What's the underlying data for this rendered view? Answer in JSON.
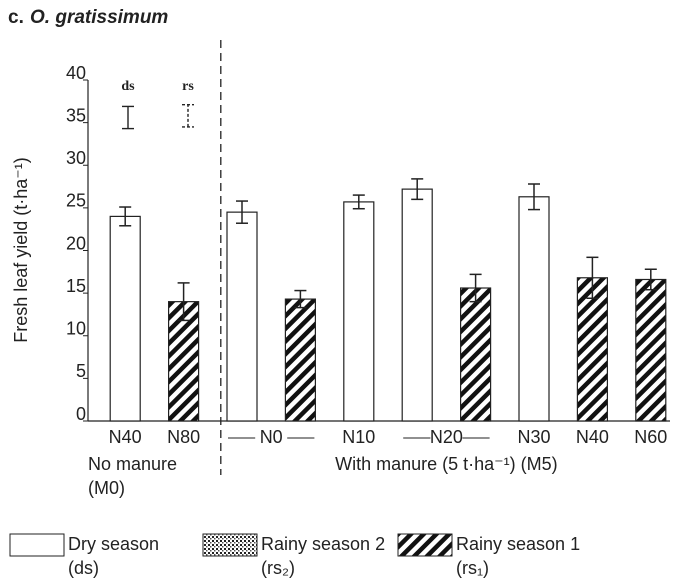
{
  "chart_data": {
    "type": "bar",
    "panel": "c.",
    "title": "O. gratissimum",
    "y_label": "Fresh leaf yield (t·ha⁻¹)",
    "categories": [
      "N40",
      "N80",
      "N0",
      "N10",
      "N20",
      "N30",
      "N40",
      "N60"
    ],
    "groups": [
      {
        "lines": [
          "No manure",
          "(M0)"
        ],
        "span": 2
      },
      {
        "lines": [
          "With manure (5 t·ha⁻¹) (M5)"
        ],
        "span": 6
      }
    ],
    "series": [
      {
        "name": "Dry season",
        "abbr": "(ds)",
        "color": "#ffffff",
        "pattern": "none",
        "values": [
          24,
          null,
          24.5,
          25.7,
          27.2,
          26.3,
          null,
          null
        ],
        "errors": [
          1.1,
          null,
          1.3,
          0.8,
          1.2,
          1.5,
          null,
          null
        ]
      },
      {
        "name": "Rainy season 2",
        "abbr": "(rs₂)",
        "color": "#ffffff",
        "pattern": "dots",
        "values": [
          null,
          null,
          null,
          null,
          null,
          null,
          null,
          null
        ],
        "errors": [
          null,
          null,
          null,
          null,
          null,
          null,
          null,
          null
        ]
      },
      {
        "name": "Rainy season 1",
        "abbr": "(rs₁)",
        "color": "#ffffff",
        "pattern": "hatch",
        "values": [
          null,
          14,
          14.3,
          null,
          15.6,
          null,
          16.8,
          16.6
        ],
        "errors": [
          null,
          2.2,
          1.0,
          null,
          1.6,
          null,
          2.4,
          1.2
        ]
      }
    ],
    "lsd": [
      {
        "label": "ds",
        "value": 35.6,
        "error": 1.3,
        "style": "solid"
      },
      {
        "label": "rs",
        "value": 35.8,
        "error": 1.3,
        "style": "dashed"
      }
    ],
    "ylim": [
      0,
      40
    ],
    "yticks": [
      0,
      5,
      10,
      15,
      20,
      25,
      30,
      35,
      40
    ]
  }
}
